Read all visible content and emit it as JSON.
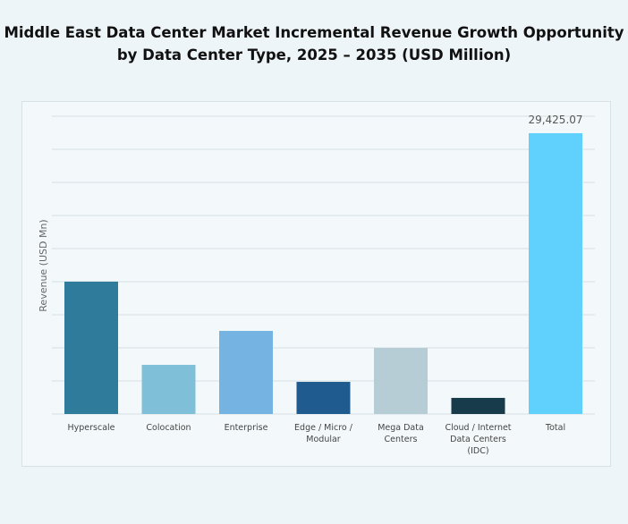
{
  "chart_data": {
    "type": "bar",
    "title": [
      "Middle East Data Center Market Incremental Revenue Growth Opportunity",
      "by Data Center Type, 2025 – 2035 (USD Million)"
    ],
    "xlabel": "",
    "ylabel": "Revenue (USD Mn)",
    "categories": [
      [
        "Hyperscale"
      ],
      [
        "Colocation"
      ],
      [
        "Enterprise"
      ],
      [
        "Edge / Micro /",
        "Modular"
      ],
      [
        "Mega Data",
        "Centers"
      ],
      [
        "Cloud / Internet",
        "Data Centers",
        "(IDC)"
      ],
      [
        "Total"
      ]
    ],
    "values": [
      13870,
      5150,
      8710,
      3370,
      6930,
      1690,
      29425.07
    ],
    "data_labels": [
      "",
      "",
      "",
      "",
      "",
      "",
      "29,425.07"
    ],
    "colors": [
      "#2e7b9b",
      "#7fbfd8",
      "#74b3e2",
      "#1f5b8e",
      "#b7cdd6",
      "#173b4a",
      "#5fd1fc"
    ],
    "ylim": [
      0,
      31200
    ],
    "grid": true,
    "gridlines": 9,
    "legend": "none"
  }
}
